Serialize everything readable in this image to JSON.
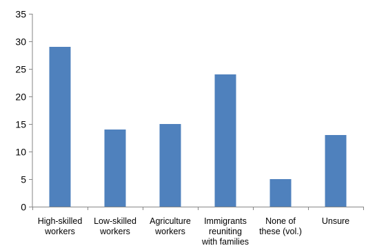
{
  "chart_data": {
    "type": "bar",
    "categories": [
      [
        "High-skilled",
        "workers"
      ],
      [
        "Low-skilled",
        "workers"
      ],
      [
        "Agriculture",
        "workers"
      ],
      [
        "Immigrants",
        "reuniting",
        "with families"
      ],
      [
        "None of",
        "these (vol.)"
      ],
      [
        "Unsure"
      ]
    ],
    "values": [
      29,
      14,
      15,
      24,
      5,
      13
    ],
    "ylim": [
      0,
      35
    ],
    "yticks": [
      0,
      5,
      10,
      15,
      20,
      25,
      30,
      35
    ],
    "grid": false,
    "legend": "none",
    "bar_color": "#4f81bd",
    "axis_color": "#868686"
  }
}
